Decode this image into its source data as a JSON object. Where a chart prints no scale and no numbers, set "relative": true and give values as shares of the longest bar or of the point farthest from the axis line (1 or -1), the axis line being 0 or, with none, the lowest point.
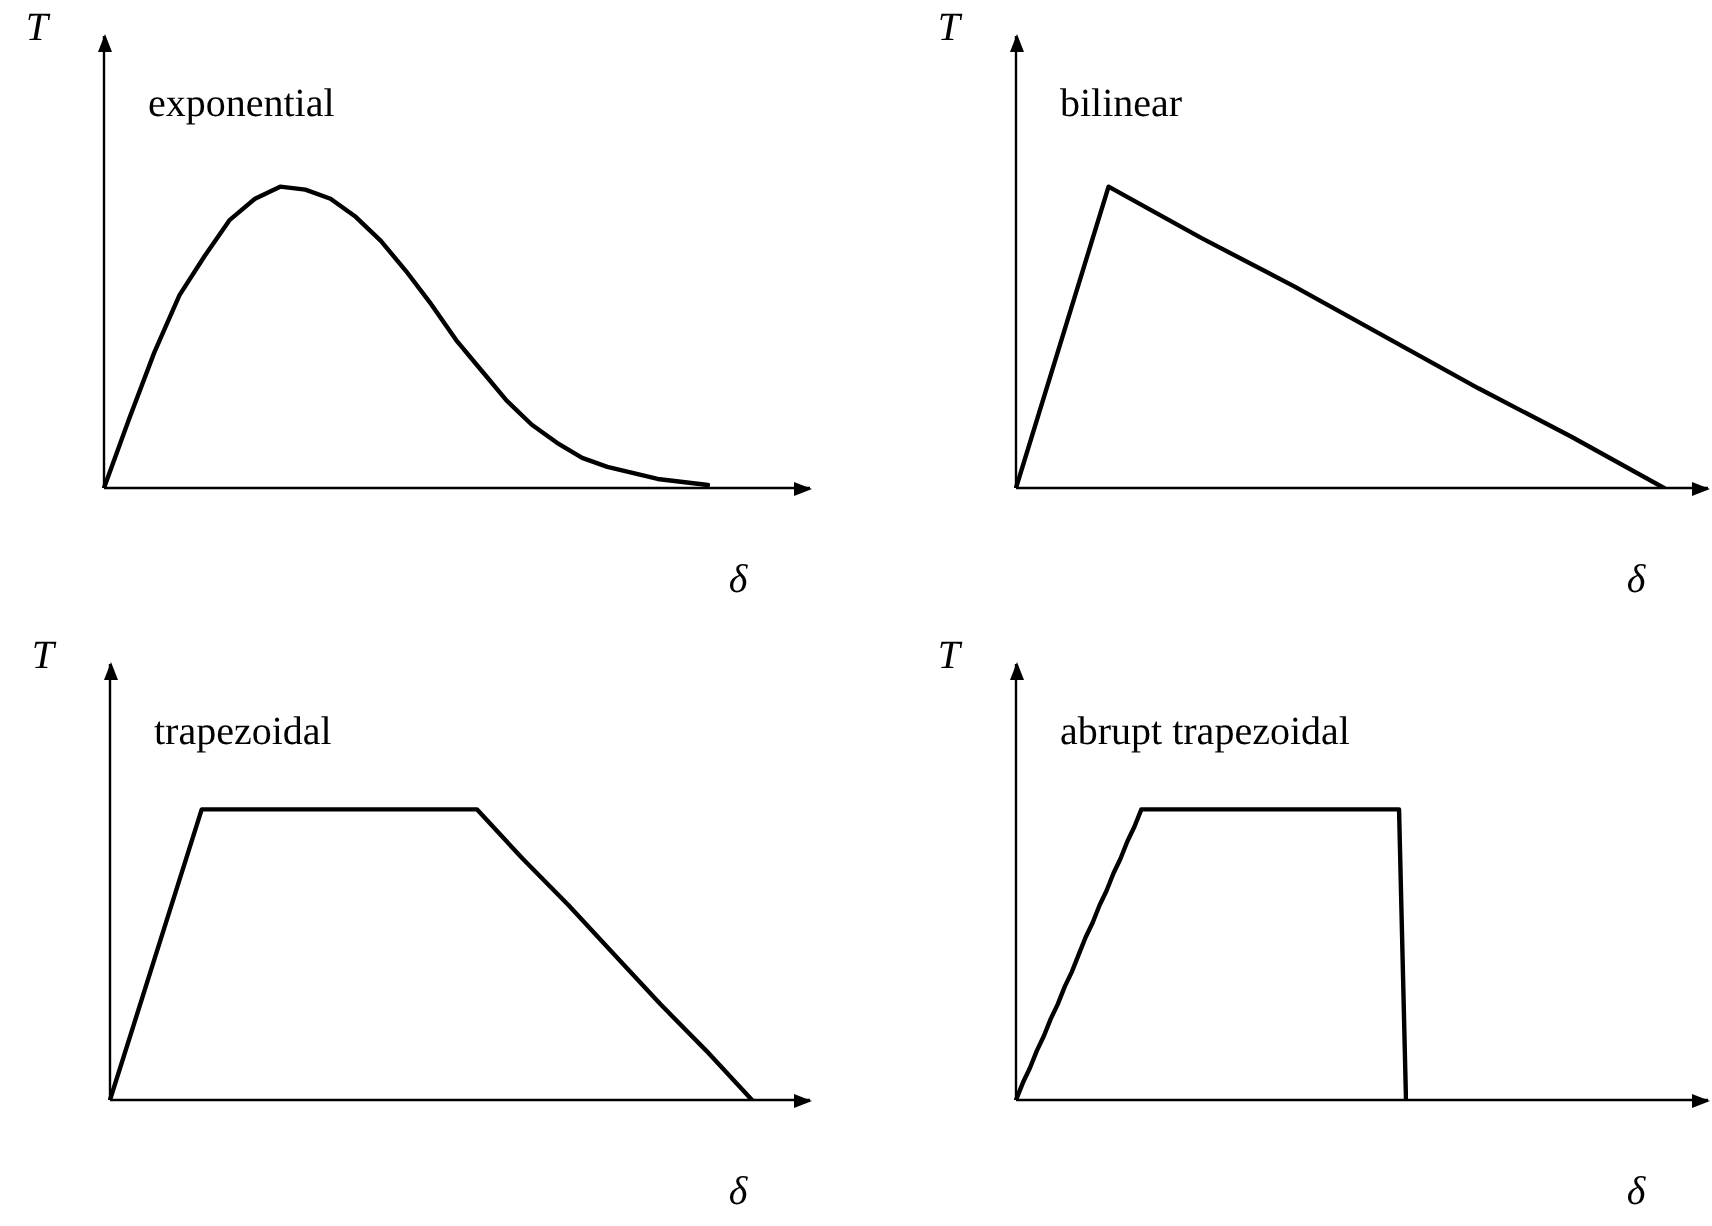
{
  "chart_data": [
    {
      "type": "line",
      "title": "exponential",
      "xlabel": "δ",
      "ylabel": "T",
      "relative": true,
      "tick_labels": false,
      "grid": false,
      "legend": false,
      "marker": "none",
      "categories": [
        null,
        null,
        null,
        null,
        null,
        null,
        null,
        null,
        null,
        null,
        null,
        null,
        null,
        null,
        null,
        null,
        null,
        null,
        null,
        null,
        null,
        null,
        null,
        null,
        null
      ],
      "series": [
        {
          "color": "#000000",
          "values": [
            0,
            0.23,
            0.45,
            0.64,
            0.77,
            0.89,
            0.96,
            1,
            0.99,
            0.96,
            0.9,
            0.82,
            0.72,
            0.61,
            0.49,
            0.39,
            0.29,
            0.21,
            0.15,
            0.1,
            0.07,
            0.05,
            0.03,
            0.02,
            0.01
          ]
        }
      ]
    },
    {
      "type": "line",
      "title": "bilinear",
      "xlabel": "δ",
      "ylabel": "T",
      "relative": true,
      "tick_labels": false,
      "grid": false,
      "legend": false,
      "marker": "none",
      "categories": [
        null,
        null,
        null,
        null,
        null,
        null,
        null,
        null
      ],
      "series": [
        {
          "color": "#000000",
          "values": [
            0,
            1,
            0.83,
            0.67,
            0.5,
            0.33,
            0.17,
            0
          ]
        }
      ]
    },
    {
      "type": "line",
      "title": "trapezoidal",
      "xlabel": "δ",
      "ylabel": "T",
      "relative": true,
      "tick_labels": false,
      "grid": false,
      "legend": false,
      "marker": "none",
      "categories": [
        null,
        null,
        null,
        null,
        null,
        null,
        null,
        null,
        null,
        null,
        null,
        null,
        null,
        null,
        null
      ],
      "series": [
        {
          "color": "#000000",
          "values": [
            0,
            0.5,
            1,
            1,
            1,
            1,
            1,
            1,
            1,
            0.83,
            0.67,
            0.5,
            0.33,
            0.17,
            0
          ]
        }
      ]
    },
    {
      "type": "line",
      "title": "abrupt trapezoidal",
      "xlabel": "δ",
      "ylabel": "T",
      "relative": true,
      "tick_labels": false,
      "grid": false,
      "legend": false,
      "marker": "none",
      "categories": [
        null,
        null,
        null,
        null,
        null,
        null,
        null,
        null,
        null,
        null,
        null,
        null,
        null,
        null,
        null,
        null,
        null,
        null,
        null,
        null,
        null,
        null,
        null,
        null,
        null,
        null,
        null,
        null,
        null,
        null,
        null,
        null,
        null,
        null,
        null,
        null,
        null,
        null,
        null,
        null,
        null,
        null,
        null,
        null,
        null,
        null,
        null,
        null,
        null,
        null,
        null,
        null,
        null,
        null,
        null,
        null,
        null
      ],
      "series": [
        {
          "color": "#000000",
          "values": [
            0,
            0.06,
            0.11,
            0.17,
            0.22,
            0.28,
            0.33,
            0.39,
            0.44,
            0.5,
            0.56,
            0.61,
            0.67,
            0.72,
            0.78,
            0.83,
            0.89,
            0.94,
            1,
            1,
            1,
            1,
            1,
            1,
            1,
            1,
            1,
            1,
            1,
            1,
            1,
            1,
            1,
            1,
            1,
            1,
            1,
            1,
            1,
            1,
            1,
            1,
            1,
            1,
            1,
            1,
            1,
            1,
            1,
            1,
            1,
            1,
            1,
            1,
            1,
            1,
            0
          ]
        }
      ]
    }
  ]
}
